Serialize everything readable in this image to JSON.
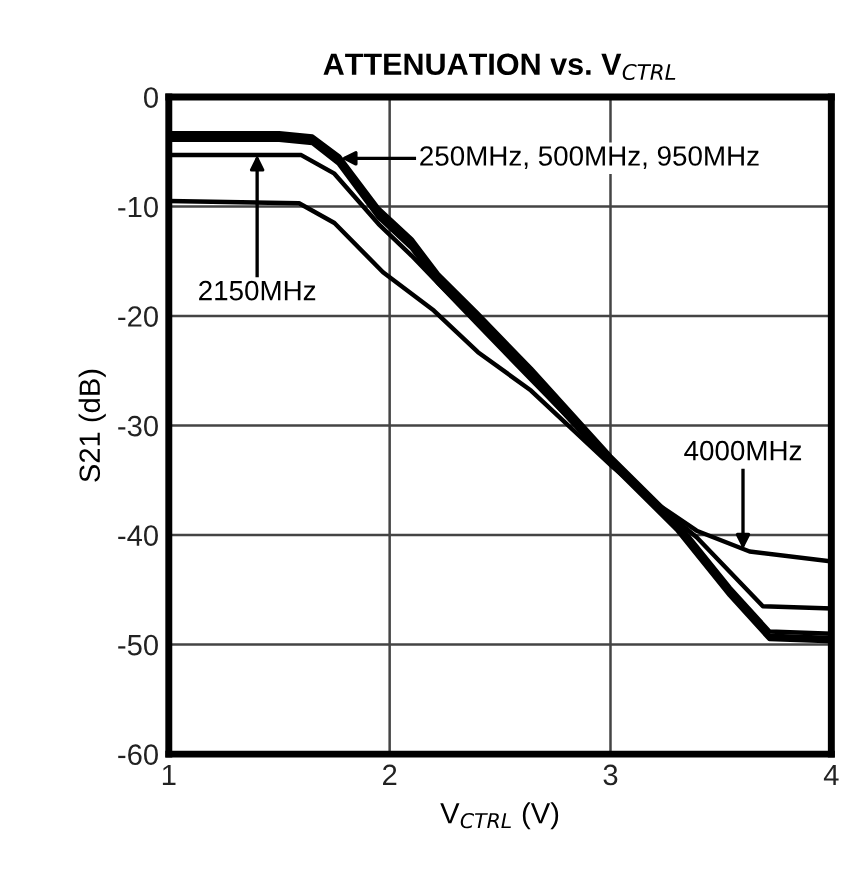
{
  "chart_data": {
    "type": "line",
    "title": "ATTENUATION vs. V$_{CTRL}$",
    "xlabel": "V$_{CTRL}$ (V)",
    "ylabel": "S21 (dB)",
    "xlim": [
      1,
      4
    ],
    "ylim": [
      -60,
      0
    ],
    "xticks": [
      1,
      2,
      3,
      4
    ],
    "yticks": [
      0,
      -10,
      -20,
      -30,
      -40,
      -50,
      -60
    ],
    "grid": true,
    "legend": false,
    "marker": "none",
    "line_style": "solid",
    "series": [
      {
        "color": "#000000",
        "x": [
          1,
          1.5,
          1.65,
          1.77,
          1.95,
          2.1,
          2.22,
          2.4,
          2.64,
          3.0,
          3.3,
          3.54,
          3.72,
          4.0
        ],
        "values": [
          -3.3,
          -3.3,
          -3.6,
          -5.4,
          -10.2,
          -13.0,
          -16.2,
          -19.8,
          -24.8,
          -32.8,
          -38.8,
          -44.8,
          -48.8,
          -49.0
        ]
      },
      {
        "color": "#000000",
        "x": [
          1,
          1.5,
          1.65,
          1.77,
          1.95,
          2.1,
          2.22,
          2.4,
          2.64,
          3.0,
          3.3,
          3.54,
          3.72,
          4.0
        ],
        "values": [
          -3.6,
          -3.6,
          -3.9,
          -5.8,
          -10.6,
          -13.4,
          -16.6,
          -20.2,
          -25.2,
          -33.2,
          -39.2,
          -45.2,
          -49.2,
          -49.4
        ]
      },
      {
        "color": "#000000",
        "x": [
          1,
          1.5,
          1.65,
          1.77,
          1.95,
          2.1,
          2.22,
          2.4,
          2.64,
          3.0,
          3.3,
          3.54,
          3.72,
          4.0
        ],
        "values": [
          -3.9,
          -3.9,
          -4.2,
          -6.1,
          -11.0,
          -13.8,
          -17.0,
          -20.6,
          -25.6,
          -33.5,
          -39.5,
          -45.5,
          -49.5,
          -49.7
        ]
      },
      {
        "color": "#000000",
        "x": [
          1,
          1.6,
          1.75,
          1.95,
          2.1,
          2.4,
          2.64,
          3.0,
          3.2,
          3.39,
          3.69,
          4.0
        ],
        "values": [
          -5.3,
          -5.3,
          -7.0,
          -11.6,
          -14.5,
          -20.8,
          -25.8,
          -33.2,
          -37.0,
          -40.2,
          -46.5,
          -46.7
        ]
      },
      {
        "color": "#000000",
        "x": [
          1,
          1.59,
          1.75,
          1.97,
          2.2,
          2.4,
          2.64,
          3.0,
          3.2,
          3.39,
          3.63,
          4.0
        ],
        "values": [
          -9.5,
          -9.7,
          -11.5,
          -16.0,
          -19.5,
          -23.3,
          -26.8,
          -33.6,
          -37.0,
          -39.6,
          -41.5,
          -42.4
        ]
      }
    ],
    "annotations": [
      {
        "text": "250MHz, 500MHz, 950MHz",
        "x": 1.78,
        "y": -5.6
      },
      {
        "text": "2150MHz",
        "x": 1.4,
        "y": -5.3
      },
      {
        "text": "4000MHz",
        "x": 3.6,
        "y": -41.3
      }
    ]
  }
}
